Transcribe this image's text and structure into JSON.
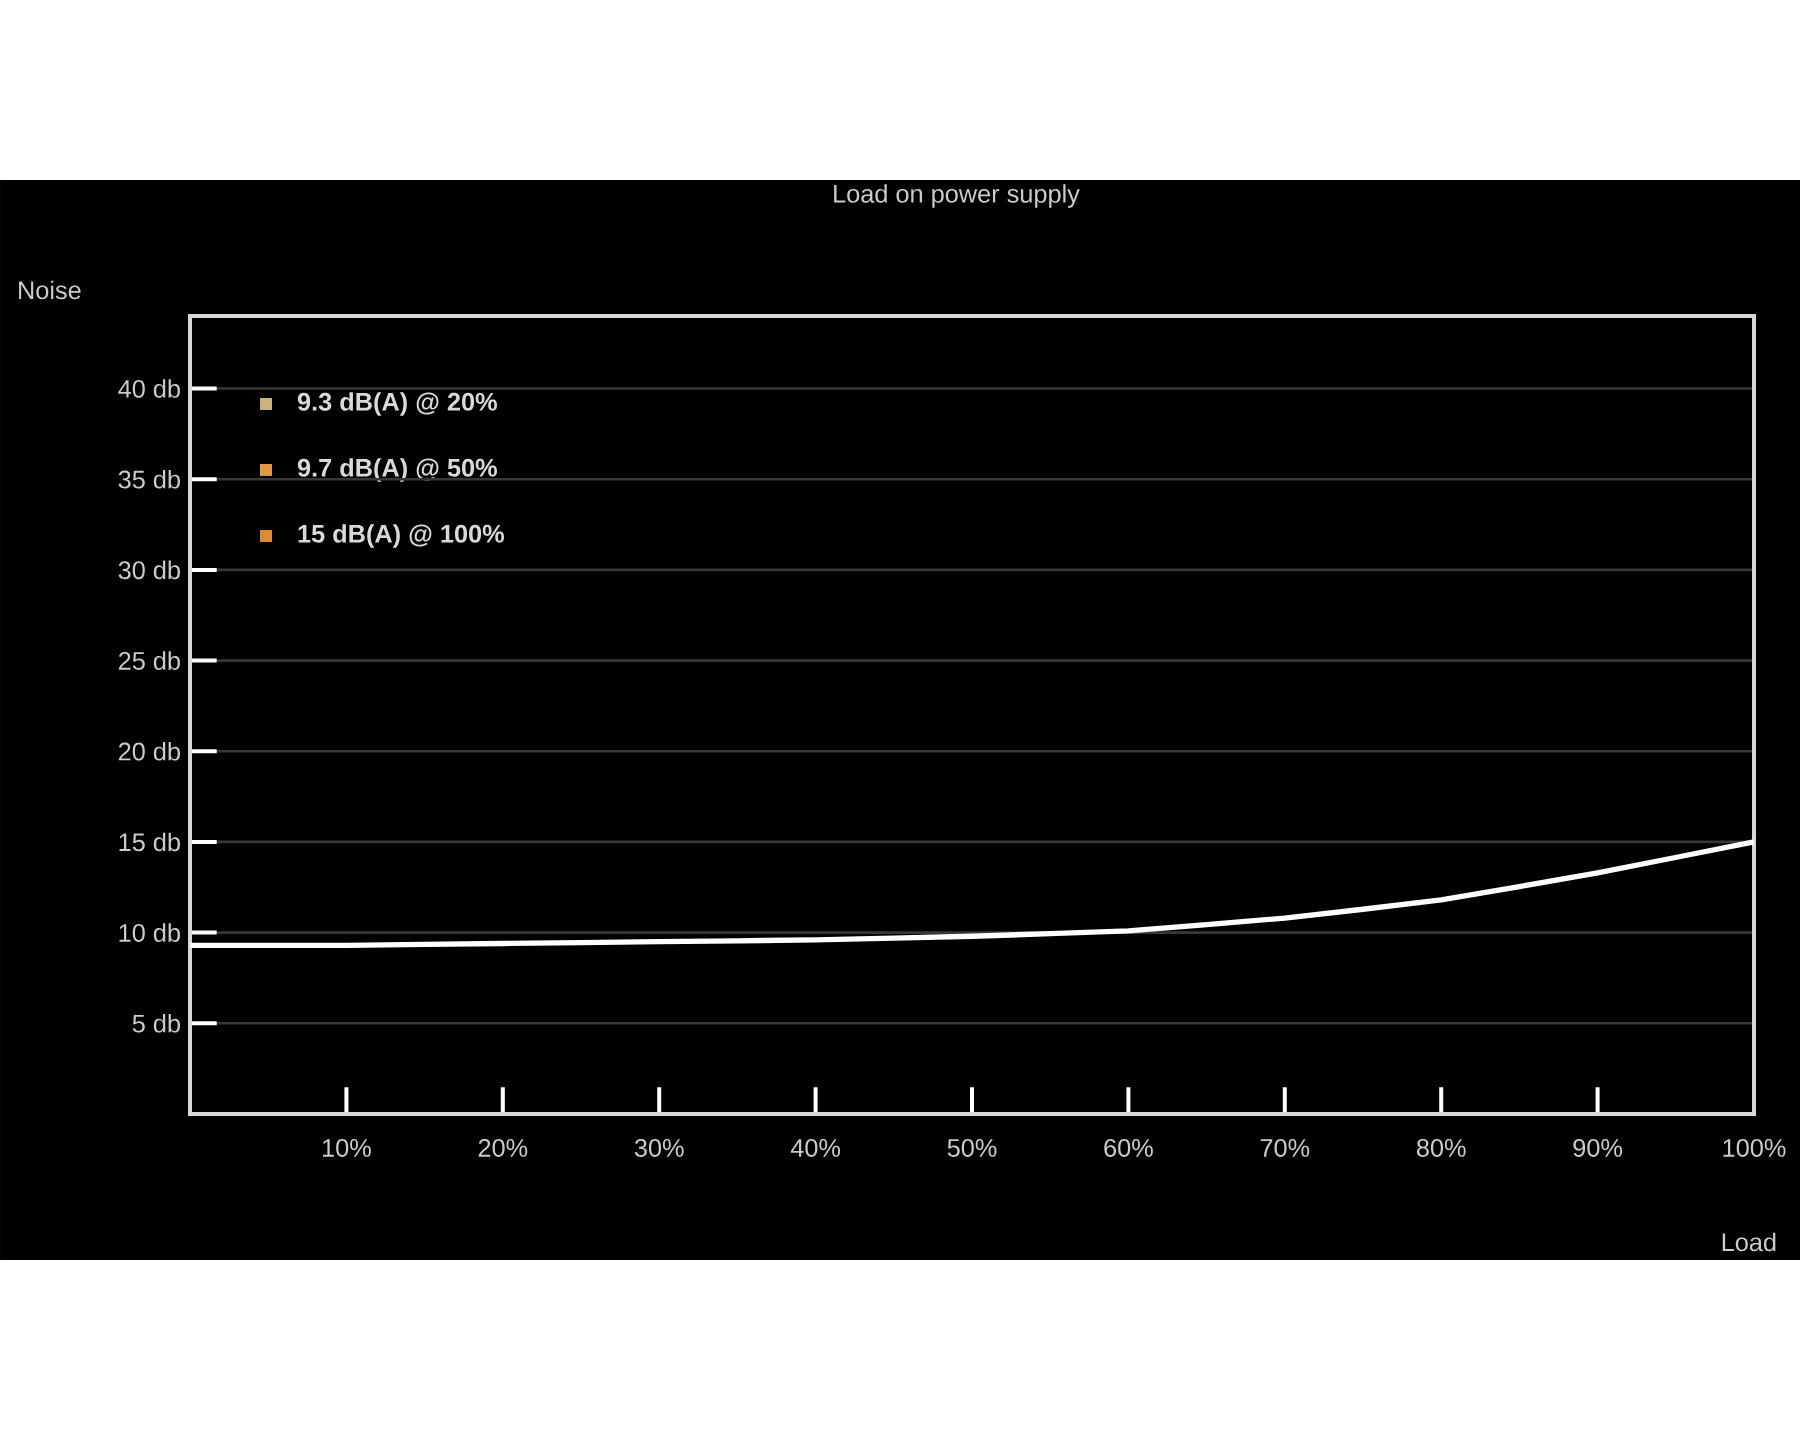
{
  "chart_data": {
    "type": "line",
    "title": "Load on power supply",
    "xlabel": "Load",
    "ylabel": "Noise",
    "x": [
      0,
      10,
      20,
      30,
      40,
      50,
      60,
      70,
      80,
      90,
      100
    ],
    "series": [
      {
        "color": "#ffffff",
        "values": [
          9.3,
          9.3,
          9.4,
          9.5,
          9.6,
          9.8,
          10.1,
          10.8,
          11.8,
          13.3,
          15.0
        ]
      }
    ],
    "xlim": [
      0,
      100
    ],
    "ylim": [
      0,
      44
    ],
    "xticks": [
      {
        "value": 10,
        "label": "10%"
      },
      {
        "value": 20,
        "label": "20%"
      },
      {
        "value": 30,
        "label": "30%"
      },
      {
        "value": 40,
        "label": "40%"
      },
      {
        "value": 50,
        "label": "50%"
      },
      {
        "value": 60,
        "label": "60%"
      },
      {
        "value": 70,
        "label": "70%"
      },
      {
        "value": 80,
        "label": "80%"
      },
      {
        "value": 90,
        "label": "90%"
      },
      {
        "value": 100,
        "label": "100%"
      }
    ],
    "yticks": [
      {
        "value": 5,
        "label": "5 db"
      },
      {
        "value": 10,
        "label": "10 db"
      },
      {
        "value": 15,
        "label": "15 db"
      },
      {
        "value": 20,
        "label": "20 db"
      },
      {
        "value": 25,
        "label": "25 db"
      },
      {
        "value": 30,
        "label": "30 db"
      },
      {
        "value": 35,
        "label": "35 db"
      },
      {
        "value": 40,
        "label": "40 db"
      }
    ],
    "annotations": [
      "9.3 dB(A) @ 20%",
      "9.7 dB(A) @ 50%",
      "15  dB(A) @ 100%"
    ],
    "grid": "y",
    "marker": "none",
    "line_style": "solid"
  }
}
